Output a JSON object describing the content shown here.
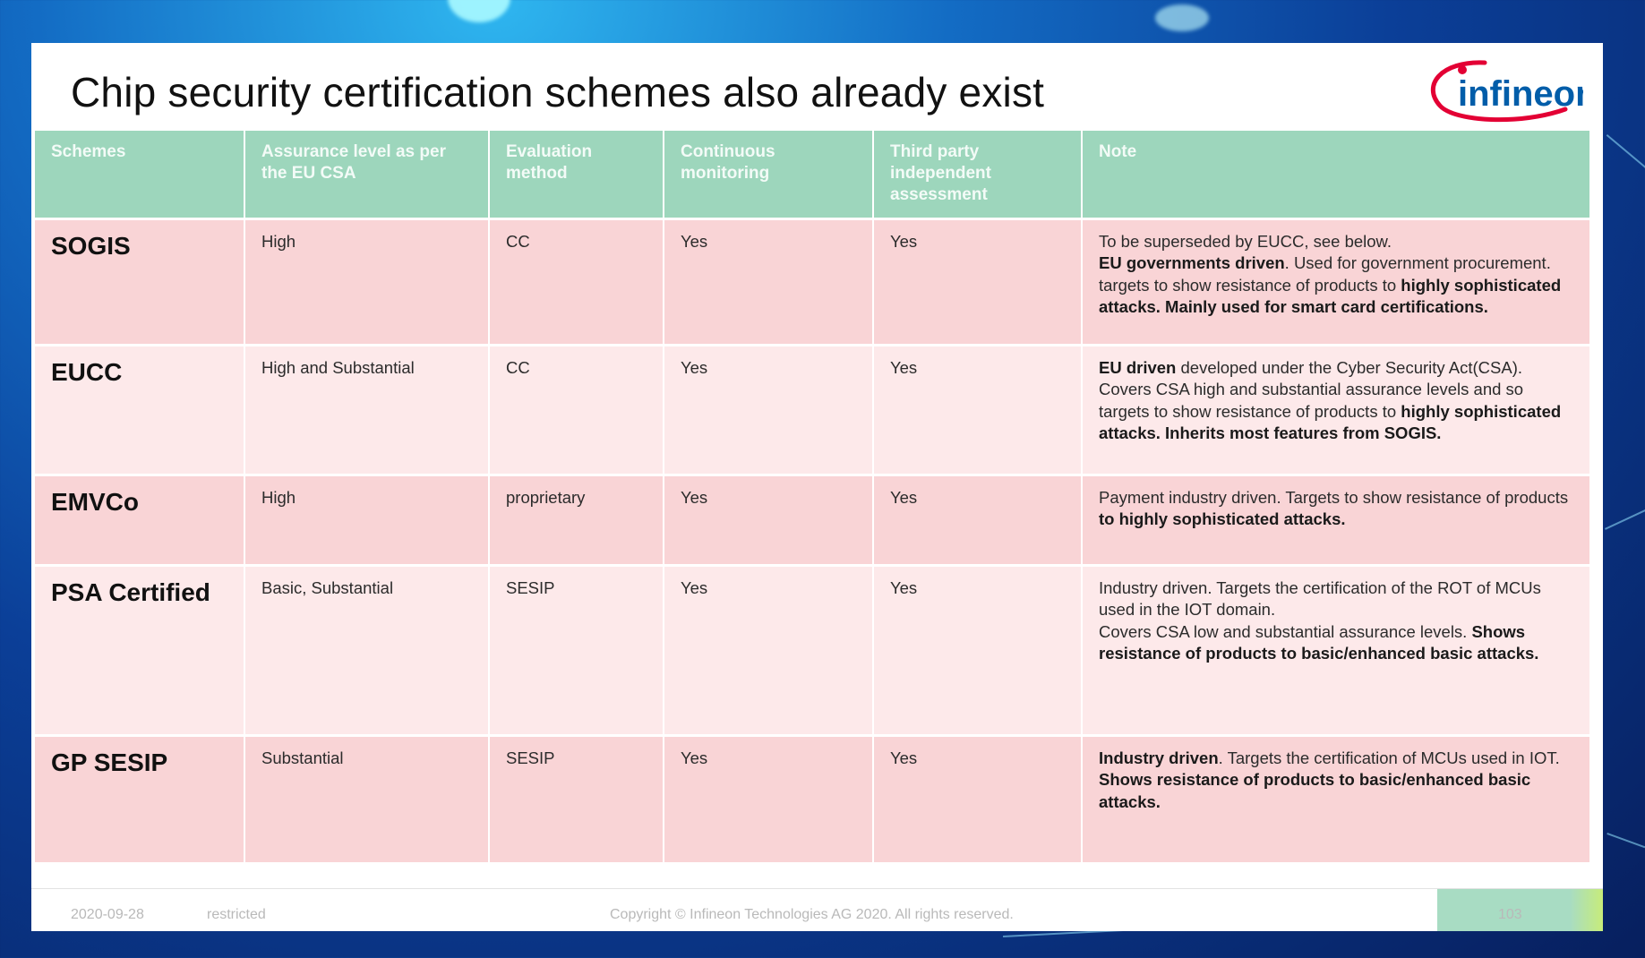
{
  "slide": {
    "title": "Chip security certification schemes also already exist",
    "logo_text": "infineon"
  },
  "table": {
    "headers": [
      "Schemes",
      "Assurance level as per the EU CSA",
      "Evaluation method",
      "Continuous monitoring",
      "Third party independent assessment",
      "Note"
    ],
    "rows": [
      {
        "scheme": "SOGIS",
        "assurance": "High",
        "method": "CC",
        "monitoring": "Yes",
        "third_party": "Yes",
        "note": [
          {
            "t": "To be superseded by EUCC, see below.",
            "b": false
          },
          {
            "t": "\n",
            "b": false
          },
          {
            "t": "EU governments driven",
            "b": true
          },
          {
            "t": ". Used for government procurement. targets to show resistance of products to ",
            "b": false
          },
          {
            "t": "highly sophisticated attacks. Mainly used for smart card certifications.",
            "b": true
          }
        ]
      },
      {
        "scheme": "EUCC",
        "assurance": "High and Substantial",
        "method": "CC",
        "monitoring": "Yes",
        "third_party": "Yes",
        "note": [
          {
            "t": "EU driven",
            "b": true
          },
          {
            "t": " developed under the Cyber Security Act(CSA). Covers CSA high and substantial assurance levels and so targets to show resistance of products to ",
            "b": false
          },
          {
            "t": "highly sophisticated attacks. Inherits most features from SOGIS.",
            "b": true
          }
        ]
      },
      {
        "scheme": "EMVCo",
        "assurance": "High",
        "method": "proprietary",
        "monitoring": "Yes",
        "third_party": "Yes",
        "note": [
          {
            "t": "Payment industry driven. Targets to show resistance of products ",
            "b": false
          },
          {
            "t": "to highly sophisticated attacks.",
            "b": true
          }
        ]
      },
      {
        "scheme": "PSA Certified",
        "assurance": "Basic, Substantial",
        "method": "SESIP",
        "monitoring": "Yes",
        "third_party": "Yes",
        "note": [
          {
            "t": "Industry driven. Targets the certification of the ROT of MCUs used in the IOT domain.",
            "b": false
          },
          {
            "t": "\n",
            "b": false
          },
          {
            "t": "Covers CSA low and substantial assurance levels. ",
            "b": false
          },
          {
            "t": "Shows resistance of products to basic/enhanced basic attacks.",
            "b": true
          }
        ]
      },
      {
        "scheme": "GP SESIP",
        "assurance": "Substantial",
        "method": "SESIP",
        "monitoring": "Yes",
        "third_party": "Yes",
        "note": [
          {
            "t": "Industry driven",
            "b": true
          },
          {
            "t": ". Targets the certification of MCUs used in IOT.  ",
            "b": false
          },
          {
            "t": "Shows resistance of products to basic/enhanced basic attacks.",
            "b": true
          }
        ]
      }
    ]
  },
  "footer": {
    "date": "2020-09-28",
    "classification": "restricted",
    "copyright": "Copyright © Infineon Technologies AG 2020. All rights reserved.",
    "page_number": "103"
  },
  "colors": {
    "header_bg": "#9dd6bc",
    "row_odd_bg": "#f9d4d6",
    "row_even_bg": "#fde9ea",
    "logo_red": "#e30034",
    "logo_blue": "#005da9"
  }
}
